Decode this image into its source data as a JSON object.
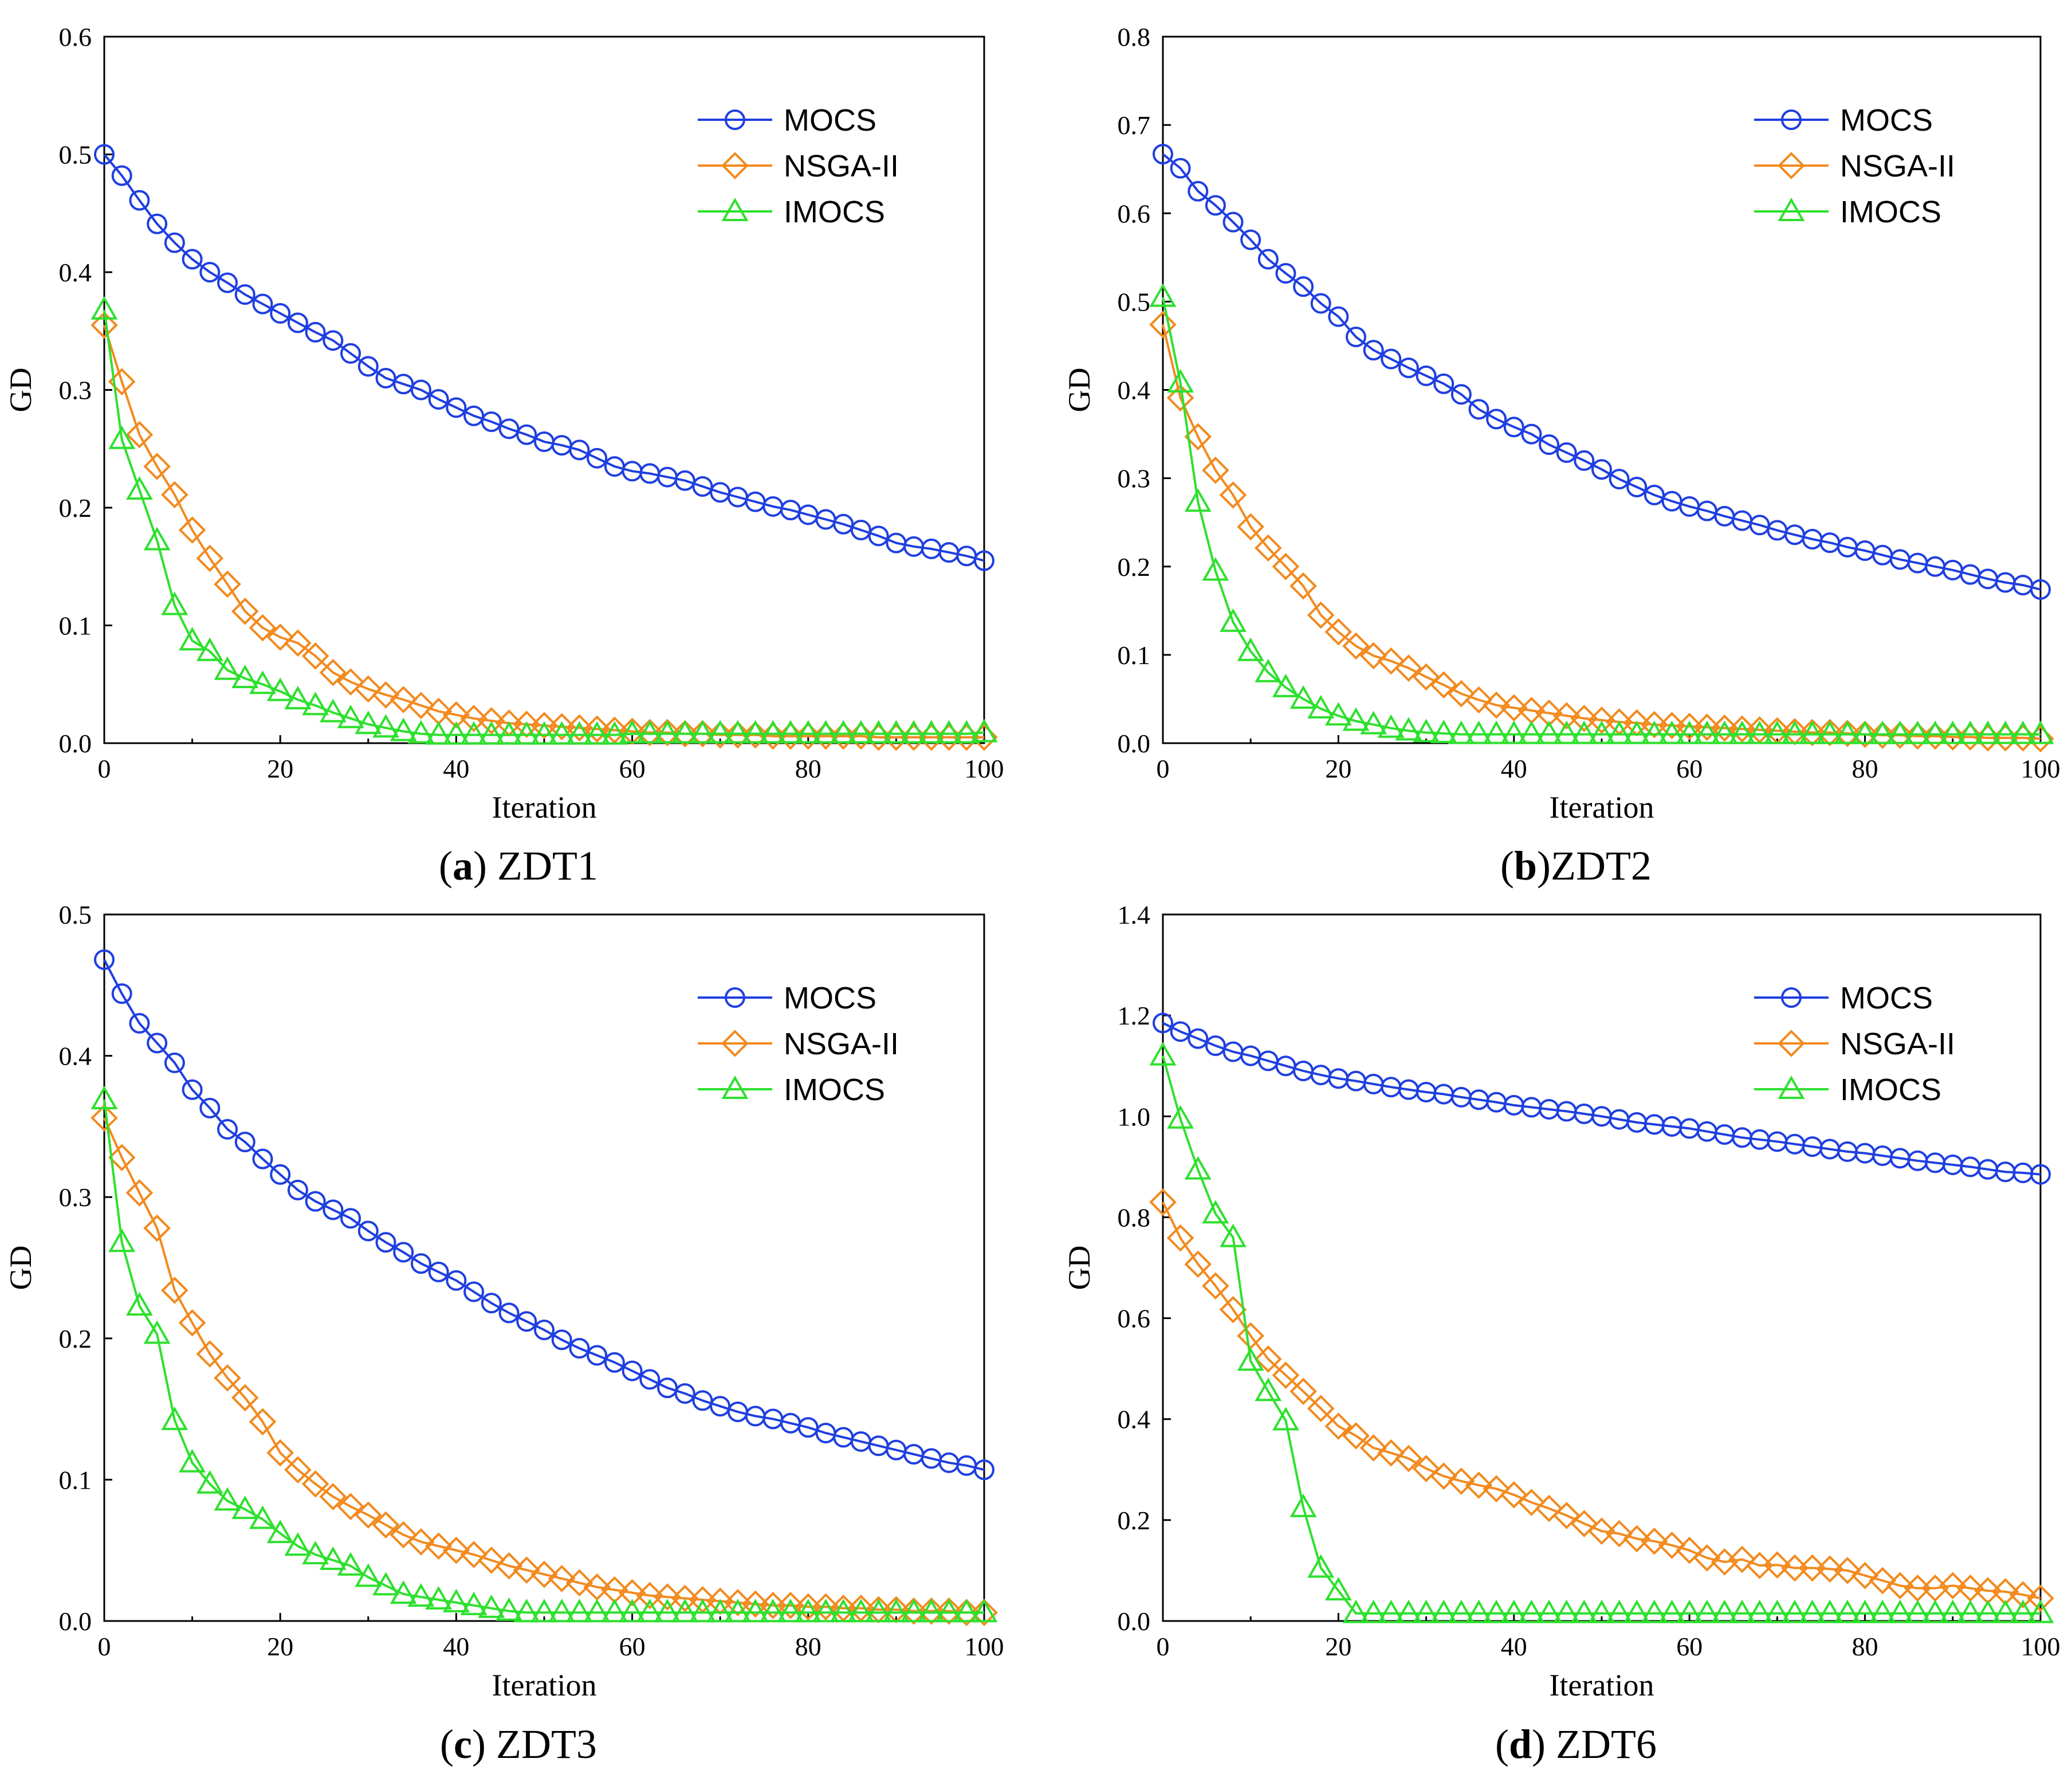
{
  "chart_data": [
    {
      "type": "line",
      "panel_letter": "a",
      "panel_name": "ZDT1",
      "caption_sep": " ",
      "xlabel": "Iteration",
      "ylabel": "GD",
      "xlim": [
        0,
        100
      ],
      "ylim": [
        0,
        0.6
      ],
      "x_ticks": [
        0,
        20,
        40,
        60,
        80,
        100
      ],
      "y_ticks": [
        "0.0",
        "0.1",
        "0.2",
        "0.3",
        "0.4",
        "0.5",
        "0.6"
      ],
      "legend_position": "top-right",
      "x": [
        0,
        2,
        4,
        6,
        8,
        10,
        12,
        14,
        16,
        18,
        20,
        22,
        24,
        26,
        28,
        30,
        32,
        34,
        36,
        38,
        40,
        42,
        44,
        46,
        48,
        50,
        52,
        54,
        56,
        58,
        60,
        62,
        64,
        66,
        68,
        70,
        72,
        74,
        76,
        78,
        80,
        82,
        84,
        86,
        88,
        90,
        92,
        94,
        96,
        98,
        100
      ],
      "series": [
        {
          "name": "MOCS",
          "color": "#1f3fe0",
          "marker": "circle",
          "values": [
            0.5,
            0.482,
            0.461,
            0.441,
            0.425,
            0.411,
            0.4,
            0.391,
            0.381,
            0.373,
            0.365,
            0.357,
            0.349,
            0.342,
            0.331,
            0.32,
            0.31,
            0.305,
            0.3,
            0.292,
            0.285,
            0.278,
            0.273,
            0.267,
            0.262,
            0.256,
            0.253,
            0.249,
            0.242,
            0.235,
            0.231,
            0.229,
            0.226,
            0.223,
            0.218,
            0.213,
            0.209,
            0.205,
            0.201,
            0.198,
            0.194,
            0.19,
            0.186,
            0.181,
            0.176,
            0.17,
            0.167,
            0.165,
            0.162,
            0.159,
            0.155
          ]
        },
        {
          "name": "NSGA-II",
          "color": "#f28a1e",
          "marker": "diamond",
          "values": [
            0.355,
            0.307,
            0.262,
            0.235,
            0.211,
            0.181,
            0.157,
            0.135,
            0.112,
            0.098,
            0.09,
            0.085,
            0.074,
            0.06,
            0.052,
            0.046,
            0.041,
            0.037,
            0.032,
            0.027,
            0.024,
            0.021,
            0.019,
            0.017,
            0.016,
            0.015,
            0.014,
            0.013,
            0.012,
            0.011,
            0.01,
            0.009,
            0.009,
            0.008,
            0.008,
            0.007,
            0.007,
            0.007,
            0.006,
            0.006,
            0.006,
            0.006,
            0.006,
            0.006,
            0.005,
            0.005,
            0.005,
            0.005,
            0.005,
            0.005,
            0.005
          ]
        },
        {
          "name": "IMOCS",
          "color": "#2ee02e",
          "marker": "triangle",
          "values": [
            0.368,
            0.258,
            0.215,
            0.172,
            0.117,
            0.087,
            0.078,
            0.062,
            0.055,
            0.05,
            0.044,
            0.037,
            0.032,
            0.026,
            0.021,
            0.016,
            0.013,
            0.01,
            0.008,
            0.007,
            0.007,
            0.007,
            0.007,
            0.007,
            0.007,
            0.007,
            0.007,
            0.007,
            0.007,
            0.007,
            0.008,
            0.008,
            0.008,
            0.008,
            0.008,
            0.008,
            0.008,
            0.008,
            0.008,
            0.008,
            0.008,
            0.008,
            0.008,
            0.008,
            0.008,
            0.008,
            0.008,
            0.008,
            0.008,
            0.008,
            0.009
          ]
        }
      ]
    },
    {
      "type": "line",
      "panel_letter": "b",
      "panel_name": "ZDT2",
      "caption_sep": "",
      "xlabel": "Iteration",
      "ylabel": "GD",
      "xlim": [
        0,
        100
      ],
      "ylim": [
        0,
        0.8
      ],
      "x_ticks": [
        0,
        20,
        40,
        60,
        80,
        100
      ],
      "y_ticks": [
        "0.0",
        "0.1",
        "0.2",
        "0.3",
        "0.4",
        "0.5",
        "0.6",
        "0.7",
        "0.8"
      ],
      "legend_position": "top-right",
      "x": [
        0,
        2,
        4,
        6,
        8,
        10,
        12,
        14,
        16,
        18,
        20,
        22,
        24,
        26,
        28,
        30,
        32,
        34,
        36,
        38,
        40,
        42,
        44,
        46,
        48,
        50,
        52,
        54,
        56,
        58,
        60,
        62,
        64,
        66,
        68,
        70,
        72,
        74,
        76,
        78,
        80,
        82,
        84,
        86,
        88,
        90,
        92,
        94,
        96,
        98,
        100
      ],
      "series": [
        {
          "name": "MOCS",
          "color": "#1f3fe0",
          "marker": "circle",
          "values": [
            0.667,
            0.651,
            0.625,
            0.609,
            0.59,
            0.57,
            0.548,
            0.532,
            0.517,
            0.498,
            0.483,
            0.46,
            0.445,
            0.435,
            0.425,
            0.416,
            0.407,
            0.395,
            0.378,
            0.367,
            0.358,
            0.35,
            0.338,
            0.329,
            0.32,
            0.31,
            0.299,
            0.29,
            0.281,
            0.274,
            0.268,
            0.263,
            0.257,
            0.252,
            0.247,
            0.241,
            0.236,
            0.231,
            0.227,
            0.222,
            0.218,
            0.213,
            0.208,
            0.204,
            0.2,
            0.196,
            0.191,
            0.186,
            0.182,
            0.179,
            0.174
          ]
        },
        {
          "name": "NSGA-II",
          "color": "#f28a1e",
          "marker": "diamond",
          "values": [
            0.474,
            0.391,
            0.347,
            0.309,
            0.281,
            0.245,
            0.221,
            0.2,
            0.178,
            0.145,
            0.126,
            0.11,
            0.099,
            0.093,
            0.085,
            0.075,
            0.066,
            0.056,
            0.049,
            0.043,
            0.04,
            0.037,
            0.034,
            0.031,
            0.028,
            0.026,
            0.024,
            0.023,
            0.021,
            0.02,
            0.019,
            0.018,
            0.017,
            0.016,
            0.015,
            0.014,
            0.013,
            0.012,
            0.012,
            0.011,
            0.01,
            0.009,
            0.009,
            0.008,
            0.008,
            0.007,
            0.007,
            0.006,
            0.006,
            0.006,
            0.005
          ]
        },
        {
          "name": "IMOCS",
          "color": "#2ee02e",
          "marker": "triangle",
          "values": [
            0.505,
            0.408,
            0.273,
            0.195,
            0.137,
            0.104,
            0.08,
            0.063,
            0.05,
            0.039,
            0.031,
            0.025,
            0.021,
            0.017,
            0.014,
            0.012,
            0.011,
            0.01,
            0.01,
            0.01,
            0.01,
            0.01,
            0.01,
            0.01,
            0.01,
            0.01,
            0.01,
            0.01,
            0.01,
            0.01,
            0.01,
            0.01,
            0.01,
            0.01,
            0.01,
            0.01,
            0.01,
            0.01,
            0.01,
            0.01,
            0.01,
            0.01,
            0.01,
            0.01,
            0.01,
            0.01,
            0.01,
            0.01,
            0.01,
            0.01,
            0.01
          ]
        }
      ]
    },
    {
      "type": "line",
      "panel_letter": "c",
      "panel_name": "ZDT3",
      "caption_sep": " ",
      "xlabel": "Iteration",
      "ylabel": "GD",
      "xlim": [
        0,
        100
      ],
      "ylim": [
        0,
        0.5
      ],
      "x_ticks": [
        0,
        20,
        40,
        60,
        80,
        100
      ],
      "y_ticks": [
        "0.0",
        "0.1",
        "0.2",
        "0.3",
        "0.4",
        "0.5"
      ],
      "legend_position": "top-right",
      "x": [
        0,
        2,
        4,
        6,
        8,
        10,
        12,
        14,
        16,
        18,
        20,
        22,
        24,
        26,
        28,
        30,
        32,
        34,
        36,
        38,
        40,
        42,
        44,
        46,
        48,
        50,
        52,
        54,
        56,
        58,
        60,
        62,
        64,
        66,
        68,
        70,
        72,
        74,
        76,
        78,
        80,
        82,
        84,
        86,
        88,
        90,
        92,
        94,
        96,
        98,
        100
      ],
      "series": [
        {
          "name": "MOCS",
          "color": "#1f3fe0",
          "marker": "circle",
          "values": [
            0.468,
            0.444,
            0.423,
            0.409,
            0.395,
            0.376,
            0.363,
            0.348,
            0.339,
            0.327,
            0.316,
            0.305,
            0.297,
            0.291,
            0.285,
            0.276,
            0.268,
            0.261,
            0.253,
            0.247,
            0.241,
            0.233,
            0.225,
            0.218,
            0.212,
            0.206,
            0.199,
            0.193,
            0.188,
            0.183,
            0.177,
            0.171,
            0.165,
            0.161,
            0.156,
            0.152,
            0.148,
            0.145,
            0.143,
            0.14,
            0.137,
            0.133,
            0.13,
            0.127,
            0.124,
            0.121,
            0.118,
            0.115,
            0.112,
            0.11,
            0.107
          ]
        },
        {
          "name": "NSGA-II",
          "color": "#f28a1e",
          "marker": "diamond",
          "values": [
            0.356,
            0.328,
            0.303,
            0.278,
            0.234,
            0.211,
            0.189,
            0.172,
            0.158,
            0.141,
            0.119,
            0.107,
            0.097,
            0.088,
            0.081,
            0.075,
            0.068,
            0.061,
            0.056,
            0.053,
            0.05,
            0.047,
            0.043,
            0.039,
            0.036,
            0.033,
            0.03,
            0.027,
            0.024,
            0.022,
            0.02,
            0.018,
            0.017,
            0.016,
            0.015,
            0.014,
            0.013,
            0.012,
            0.011,
            0.011,
            0.01,
            0.01,
            0.009,
            0.009,
            0.008,
            0.008,
            0.007,
            0.007,
            0.007,
            0.006,
            0.006
          ]
        },
        {
          "name": "IMOCS",
          "color": "#2ee02e",
          "marker": "triangle",
          "values": [
            0.369,
            0.268,
            0.223,
            0.203,
            0.142,
            0.112,
            0.097,
            0.085,
            0.079,
            0.072,
            0.062,
            0.053,
            0.047,
            0.043,
            0.039,
            0.031,
            0.025,
            0.019,
            0.017,
            0.015,
            0.013,
            0.011,
            0.009,
            0.007,
            0.006,
            0.006,
            0.006,
            0.006,
            0.006,
            0.006,
            0.006,
            0.006,
            0.006,
            0.006,
            0.006,
            0.006,
            0.006,
            0.006,
            0.006,
            0.006,
            0.006,
            0.006,
            0.006,
            0.006,
            0.006,
            0.006,
            0.006,
            0.006,
            0.006,
            0.006,
            0.006
          ]
        }
      ]
    },
    {
      "type": "line",
      "panel_letter": "d",
      "panel_name": "ZDT6",
      "caption_sep": " ",
      "xlabel": "Iteration",
      "ylabel": "GD",
      "xlim": [
        0,
        100
      ],
      "ylim": [
        0,
        1.4
      ],
      "x_ticks": [
        0,
        20,
        40,
        60,
        80,
        100
      ],
      "y_ticks": [
        "0.0",
        "0.2",
        "0.4",
        "0.6",
        "0.8",
        "1.0",
        "1.2",
        "1.4"
      ],
      "legend_position": "top-right",
      "x": [
        0,
        2,
        4,
        6,
        8,
        10,
        12,
        14,
        16,
        18,
        20,
        22,
        24,
        26,
        28,
        30,
        32,
        34,
        36,
        38,
        40,
        42,
        44,
        46,
        48,
        50,
        52,
        54,
        56,
        58,
        60,
        62,
        64,
        66,
        68,
        70,
        72,
        74,
        76,
        78,
        80,
        82,
        84,
        86,
        88,
        90,
        92,
        94,
        96,
        98,
        100
      ],
      "series": [
        {
          "name": "MOCS",
          "color": "#1f3fe0",
          "marker": "circle",
          "values": [
            1.185,
            1.168,
            1.154,
            1.14,
            1.128,
            1.12,
            1.11,
            1.1,
            1.09,
            1.082,
            1.075,
            1.07,
            1.064,
            1.058,
            1.053,
            1.048,
            1.044,
            1.038,
            1.033,
            1.028,
            1.022,
            1.018,
            1.014,
            1.01,
            1.005,
            1.0,
            0.994,
            0.988,
            0.984,
            0.98,
            0.976,
            0.97,
            0.964,
            0.958,
            0.954,
            0.95,
            0.945,
            0.94,
            0.935,
            0.93,
            0.927,
            0.922,
            0.917,
            0.912,
            0.908,
            0.904,
            0.9,
            0.895,
            0.89,
            0.888,
            0.885
          ]
        },
        {
          "name": "NSGA-II",
          "color": "#f28a1e",
          "marker": "diamond",
          "values": [
            0.83,
            0.759,
            0.707,
            0.664,
            0.617,
            0.565,
            0.519,
            0.487,
            0.455,
            0.421,
            0.386,
            0.367,
            0.343,
            0.333,
            0.322,
            0.302,
            0.287,
            0.277,
            0.269,
            0.262,
            0.25,
            0.235,
            0.223,
            0.209,
            0.193,
            0.178,
            0.173,
            0.163,
            0.158,
            0.15,
            0.14,
            0.125,
            0.117,
            0.122,
            0.11,
            0.111,
            0.105,
            0.105,
            0.103,
            0.1,
            0.09,
            0.08,
            0.07,
            0.065,
            0.065,
            0.07,
            0.065,
            0.06,
            0.058,
            0.052,
            0.045
          ]
        },
        {
          "name": "IMOCS",
          "color": "#2ee02e",
          "marker": "triangle",
          "values": [
            1.12,
            0.995,
            0.894,
            0.807,
            0.76,
            0.515,
            0.455,
            0.397,
            0.225,
            0.105,
            0.06,
            0.015,
            0.015,
            0.015,
            0.015,
            0.015,
            0.015,
            0.015,
            0.015,
            0.015,
            0.015,
            0.015,
            0.015,
            0.015,
            0.015,
            0.015,
            0.015,
            0.015,
            0.015,
            0.015,
            0.015,
            0.015,
            0.015,
            0.015,
            0.015,
            0.015,
            0.015,
            0.015,
            0.015,
            0.015,
            0.015,
            0.015,
            0.015,
            0.015,
            0.015,
            0.015,
            0.015,
            0.015,
            0.015,
            0.015,
            0.015
          ]
        }
      ]
    }
  ]
}
